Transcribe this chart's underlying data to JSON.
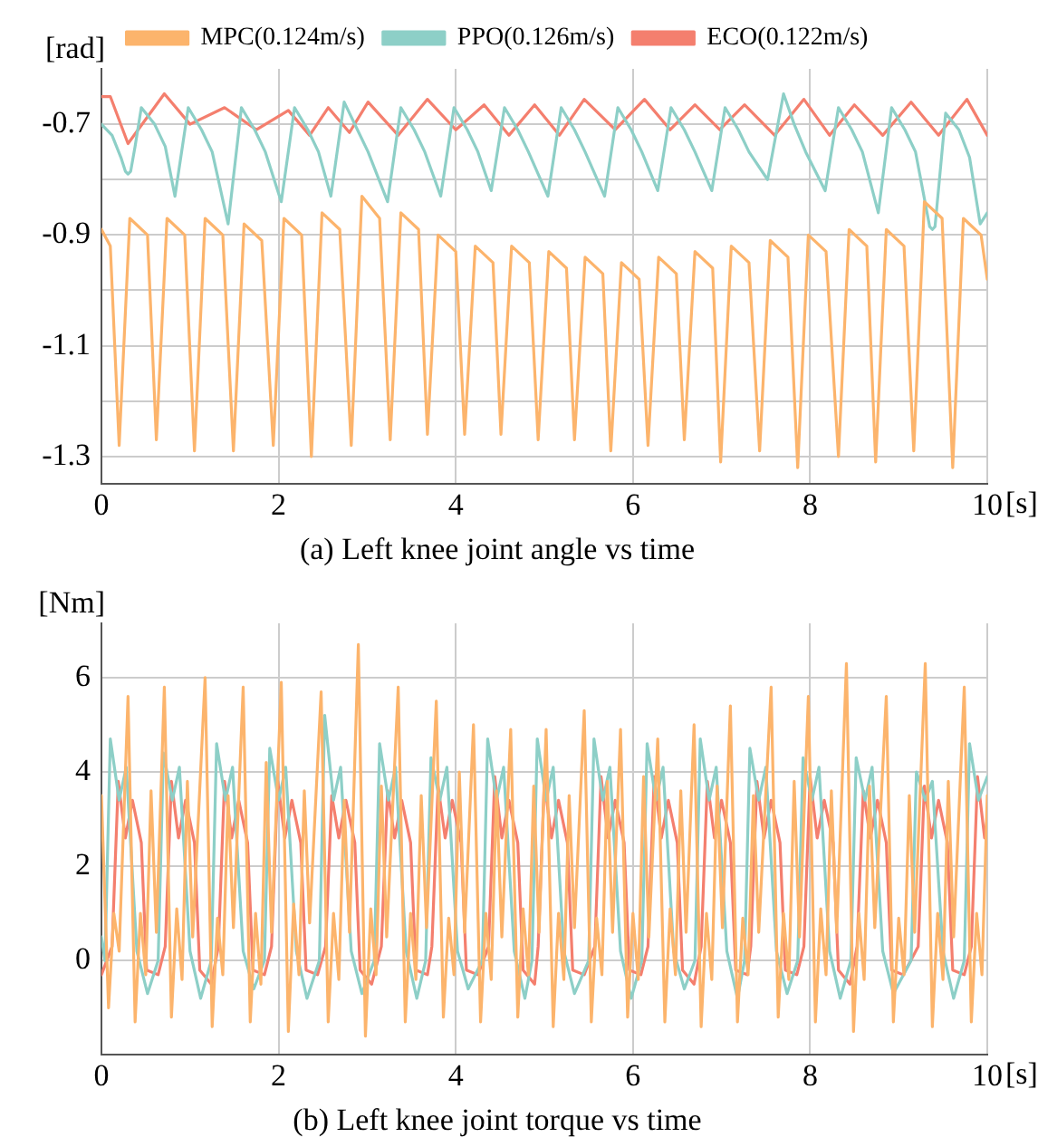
{
  "chart_data": [
    {
      "type": "line",
      "title": "(a) Left knee joint angle vs time",
      "xlabel": "[s]",
      "ylabel": "[rad]",
      "xlim": [
        0,
        10
      ],
      "xticks": [
        0,
        2,
        4,
        6,
        8,
        10
      ],
      "ylim": [
        -1.35,
        -0.6
      ],
      "yticks": [
        -1.3,
        {
          "value": -1.2,
          "label": null
        },
        -1.1,
        {
          "value": -1.0,
          "label": null
        },
        -0.9,
        {
          "value": -0.8,
          "label": null
        },
        -0.7
      ],
      "grid": true,
      "legend": "top",
      "marker": "none",
      "line_style": "solid",
      "series": [
        {
          "name": "MPC(0.124m/s)",
          "color": "#fcb46c",
          "x": [
            0,
            0.1,
            0.2,
            0.32,
            0.52,
            0.62,
            0.74,
            0.94,
            1.05,
            1.17,
            1.37,
            1.49,
            1.61,
            1.81,
            1.94,
            2.06,
            2.26,
            2.37,
            2.49,
            2.69,
            2.82,
            2.94,
            3.14,
            3.26,
            3.38,
            3.58,
            3.68,
            3.8,
            4.0,
            4.1,
            4.22,
            4.42,
            4.51,
            4.63,
            4.83,
            4.93,
            5.05,
            5.25,
            5.34,
            5.46,
            5.66,
            5.75,
            5.87,
            6.07,
            6.17,
            6.29,
            6.49,
            6.58,
            6.7,
            6.9,
            6.99,
            7.11,
            7.31,
            7.43,
            7.55,
            7.75,
            7.86,
            7.98,
            8.18,
            8.32,
            8.44,
            8.64,
            8.74,
            8.86,
            9.06,
            9.17,
            9.29,
            9.49,
            9.61,
            9.73,
            9.93,
            10
          ],
          "values": [
            -0.89,
            -0.92,
            -1.28,
            -0.87,
            -0.9,
            -1.27,
            -0.87,
            -0.9,
            -1.29,
            -0.87,
            -0.9,
            -1.29,
            -0.88,
            -0.91,
            -1.28,
            -0.87,
            -0.9,
            -1.3,
            -0.86,
            -0.89,
            -1.28,
            -0.83,
            -0.87,
            -1.27,
            -0.86,
            -0.89,
            -1.26,
            -0.9,
            -0.93,
            -1.26,
            -0.92,
            -0.95,
            -1.26,
            -0.92,
            -0.95,
            -1.27,
            -0.93,
            -0.96,
            -1.27,
            -0.94,
            -0.97,
            -1.29,
            -0.95,
            -0.98,
            -1.28,
            -0.94,
            -0.97,
            -1.27,
            -0.93,
            -0.96,
            -1.31,
            -0.92,
            -0.95,
            -1.29,
            -0.91,
            -0.94,
            -1.32,
            -0.9,
            -0.93,
            -1.3,
            -0.89,
            -0.92,
            -1.31,
            -0.89,
            -0.92,
            -1.29,
            -0.84,
            -0.87,
            -1.32,
            -0.87,
            -0.9,
            -0.98
          ]
        },
        {
          "name": "PPO(0.126m/s)",
          "color": "#8dcfc7",
          "x": [
            0,
            0.12,
            0.22,
            0.27,
            0.3,
            0.33,
            0.38,
            0.45,
            0.6,
            0.72,
            0.83,
            0.98,
            1.13,
            1.25,
            1.43,
            1.58,
            1.73,
            1.85,
            2.03,
            2.18,
            2.33,
            2.45,
            2.59,
            2.74,
            2.89,
            3.01,
            3.23,
            3.38,
            3.53,
            3.65,
            3.83,
            3.98,
            4.13,
            4.25,
            4.4,
            4.55,
            4.7,
            4.82,
            5.04,
            5.19,
            5.34,
            5.46,
            5.68,
            5.83,
            5.98,
            6.1,
            6.28,
            6.43,
            6.58,
            6.7,
            6.89,
            7.04,
            7.19,
            7.31,
            7.52,
            7.7,
            7.82,
            7.95,
            8.17,
            8.32,
            8.47,
            8.59,
            8.77,
            8.92,
            9.07,
            9.19,
            9.35,
            9.38,
            9.41,
            9.53,
            9.68,
            9.8,
            9.92,
            10
          ],
          "values": [
            -0.7,
            -0.72,
            -0.76,
            -0.785,
            -0.79,
            -0.785,
            -0.74,
            -0.67,
            -0.7,
            -0.74,
            -0.83,
            -0.67,
            -0.71,
            -0.75,
            -0.88,
            -0.67,
            -0.71,
            -0.75,
            -0.84,
            -0.67,
            -0.71,
            -0.75,
            -0.83,
            -0.66,
            -0.71,
            -0.75,
            -0.84,
            -0.67,
            -0.71,
            -0.75,
            -0.83,
            -0.67,
            -0.71,
            -0.75,
            -0.82,
            -0.67,
            -0.71,
            -0.75,
            -0.83,
            -0.67,
            -0.71,
            -0.75,
            -0.83,
            -0.67,
            -0.71,
            -0.75,
            -0.82,
            -0.67,
            -0.71,
            -0.75,
            -0.82,
            -0.67,
            -0.71,
            -0.75,
            -0.8,
            -0.645,
            -0.7,
            -0.75,
            -0.82,
            -0.67,
            -0.71,
            -0.75,
            -0.86,
            -0.67,
            -0.71,
            -0.75,
            -0.885,
            -0.89,
            -0.885,
            -0.68,
            -0.71,
            -0.76,
            -0.88,
            -0.86
          ]
        },
        {
          "name": "ECO(0.122m/s)",
          "color": "#f47f6e",
          "x": [
            0,
            0.1,
            0.3,
            0.71,
            1.0,
            1.39,
            1.75,
            2.11,
            2.35,
            2.56,
            2.8,
            3.01,
            3.35,
            3.68,
            4.0,
            4.32,
            4.6,
            4.89,
            5.17,
            5.45,
            5.8,
            6.13,
            6.42,
            6.7,
            6.98,
            7.26,
            7.6,
            7.93,
            8.22,
            8.5,
            8.82,
            9.14,
            9.45,
            9.77,
            10
          ],
          "values": [
            -0.65,
            -0.65,
            -0.735,
            -0.645,
            -0.7,
            -0.67,
            -0.71,
            -0.675,
            -0.72,
            -0.67,
            -0.715,
            -0.66,
            -0.72,
            -0.655,
            -0.71,
            -0.665,
            -0.72,
            -0.665,
            -0.72,
            -0.655,
            -0.71,
            -0.655,
            -0.71,
            -0.665,
            -0.71,
            -0.665,
            -0.72,
            -0.655,
            -0.72,
            -0.665,
            -0.72,
            -0.66,
            -0.72,
            -0.655,
            -0.72
          ]
        }
      ]
    },
    {
      "type": "line",
      "title": "(b) Left knee joint torque vs time",
      "xlabel": "[s]",
      "ylabel": "[Nm]",
      "xlim": [
        0,
        10
      ],
      "xticks": [
        0,
        2,
        4,
        6,
        8,
        10
      ],
      "ylim": [
        -2,
        7.15
      ],
      "yticks": [
        0,
        2,
        4,
        6
      ],
      "grid": true,
      "marker": "none",
      "line_style": "solid",
      "series": [
        {
          "color": "#fcb46c",
          "x": [
            0,
            0.08,
            0.14,
            0.2,
            0.3,
            0.38,
            0.44,
            0.5,
            0.56,
            0.62,
            0.71,
            0.79,
            0.85,
            0.91,
            0.97,
            1.03,
            1.17,
            1.25,
            1.31,
            1.37,
            1.43,
            1.49,
            1.6,
            1.68,
            1.74,
            1.8,
            1.86,
            1.92,
            2.03,
            2.11,
            2.17,
            2.23,
            2.29,
            2.35,
            2.48,
            2.56,
            2.62,
            2.68,
            2.74,
            2.8,
            2.9,
            2.98,
            3.04,
            3.1,
            3.16,
            3.22,
            3.35,
            3.43,
            3.49,
            3.55,
            3.61,
            3.67,
            3.78,
            3.86,
            3.92,
            3.98,
            4.04,
            4.1,
            4.2,
            4.28,
            4.34,
            4.4,
            4.46,
            4.52,
            4.62,
            4.7,
            4.76,
            4.82,
            4.88,
            4.94,
            5.02,
            5.1,
            5.16,
            5.22,
            5.28,
            5.34,
            5.45,
            5.53,
            5.59,
            5.65,
            5.71,
            5.77,
            5.86,
            5.94,
            6.0,
            6.06,
            6.12,
            6.18,
            6.28,
            6.36,
            6.42,
            6.48,
            6.54,
            6.6,
            6.69,
            6.77,
            6.83,
            6.89,
            6.95,
            7.01,
            7.1,
            7.18,
            7.24,
            7.3,
            7.36,
            7.42,
            7.56,
            7.64,
            7.7,
            7.76,
            7.82,
            7.88,
            7.98,
            8.06,
            8.12,
            8.18,
            8.24,
            8.3,
            8.41,
            8.49,
            8.55,
            8.61,
            8.67,
            8.73,
            8.86,
            8.94,
            9.0,
            9.06,
            9.12,
            9.18,
            9.3,
            9.38,
            9.44,
            9.5,
            9.56,
            9.62,
            9.74,
            9.82,
            9.88,
            9.94,
            10
          ],
          "values": [
            3.5,
            -1.0,
            1.0,
            0.2,
            5.6,
            -1.3,
            1.0,
            -0.3,
            3.6,
            0.6,
            5.8,
            -1.2,
            1.1,
            -0.4,
            3.8,
            0.5,
            6.0,
            -1.4,
            0.9,
            -0.3,
            3.5,
            0.7,
            5.8,
            -1.3,
            1.0,
            -0.5,
            4.2,
            0.6,
            5.9,
            -1.5,
            1.2,
            -0.3,
            3.6,
            0.8,
            5.7,
            -1.3,
            1.0,
            -0.4,
            3.4,
            0.6,
            6.7,
            -1.6,
            1.1,
            -0.3,
            3.7,
            0.5,
            5.8,
            -1.3,
            1.0,
            -0.4,
            3.5,
            0.7,
            5.5,
            -1.2,
            0.9,
            -0.3,
            4.0,
            0.6,
            5.0,
            -1.3,
            1.0,
            -0.4,
            3.6,
            0.5,
            4.9,
            -1.2,
            1.1,
            -0.3,
            3.7,
            0.6,
            4.9,
            -1.4,
            1.0,
            -0.4,
            3.5,
            0.7,
            5.3,
            -1.3,
            0.9,
            -0.3,
            3.8,
            0.6,
            4.9,
            -1.2,
            1.0,
            -0.4,
            3.9,
            0.5,
            4.7,
            -1.3,
            1.1,
            -0.3,
            3.6,
            0.6,
            5.0,
            -1.4,
            1.0,
            -0.4,
            3.7,
            0.7,
            5.4,
            -1.3,
            0.9,
            -0.3,
            3.5,
            0.6,
            5.8,
            -1.2,
            1.0,
            -0.4,
            3.8,
            0.5,
            5.6,
            -1.3,
            1.1,
            -0.3,
            3.6,
            0.6,
            6.3,
            -1.5,
            1.0,
            -0.4,
            3.7,
            0.7,
            5.6,
            -1.3,
            0.9,
            -0.3,
            3.5,
            0.6,
            6.3,
            -1.4,
            1.0,
            -0.4,
            3.8,
            0.5,
            5.8,
            -1.3,
            1.0,
            -0.3,
            3.5
          ]
        },
        {
          "color": "#8dcfc7",
          "x": [
            0,
            0.04,
            0.1,
            0.2,
            0.28,
            0.4,
            0.52,
            0.64,
            0.7,
            0.8,
            0.88,
            1.0,
            1.12,
            1.24,
            1.3,
            1.4,
            1.48,
            1.6,
            1.72,
            1.84,
            1.9,
            2.0,
            2.08,
            2.2,
            2.32,
            2.46,
            2.52,
            2.62,
            2.7,
            2.82,
            2.94,
            3.08,
            3.14,
            3.24,
            3.32,
            3.44,
            3.56,
            3.66,
            3.72,
            3.82,
            3.9,
            4.02,
            4.14,
            4.3,
            4.36,
            4.46,
            4.54,
            4.66,
            4.78,
            4.86,
            4.92,
            5.02,
            5.1,
            5.22,
            5.34,
            5.5,
            5.56,
            5.66,
            5.74,
            5.86,
            5.98,
            6.1,
            6.16,
            6.26,
            6.34,
            6.46,
            6.58,
            6.7,
            6.76,
            6.86,
            6.94,
            7.06,
            7.18,
            7.26,
            7.32,
            7.42,
            7.5,
            7.62,
            7.74,
            7.86,
            7.92,
            8.02,
            8.1,
            8.22,
            8.34,
            8.46,
            8.52,
            8.62,
            8.7,
            8.82,
            8.94,
            9.14,
            9.2,
            9.3,
            9.38,
            9.5,
            9.62,
            9.74,
            9.8,
            9.9,
            10
          ],
          "values": [
            0.5,
            0.0,
            4.7,
            3.4,
            4.1,
            0.2,
            -0.7,
            0.0,
            4.4,
            3.4,
            4.1,
            0.2,
            -0.8,
            0.0,
            4.6,
            3.4,
            4.1,
            0.2,
            -0.6,
            0.0,
            4.5,
            3.4,
            4.1,
            0.2,
            -0.8,
            0.0,
            5.2,
            3.4,
            4.1,
            0.2,
            -0.7,
            0.0,
            4.6,
            3.4,
            4.1,
            0.2,
            -0.8,
            0.0,
            4.3,
            3.4,
            4.1,
            0.2,
            -0.6,
            0.0,
            4.7,
            3.4,
            4.1,
            0.2,
            -0.8,
            0.0,
            4.7,
            3.4,
            4.1,
            0.2,
            -0.7,
            0.0,
            4.7,
            3.4,
            4.1,
            0.2,
            -0.8,
            0.0,
            4.6,
            3.4,
            4.1,
            0.2,
            -0.6,
            0.0,
            4.7,
            3.4,
            4.1,
            0.2,
            -0.8,
            0.0,
            4.5,
            3.4,
            4.1,
            0.2,
            -0.7,
            0.0,
            4.3,
            3.4,
            4.1,
            0.2,
            -0.8,
            0.0,
            4.3,
            3.4,
            4.1,
            0.2,
            -0.7,
            0.0,
            4.0,
            3.4,
            3.8,
            0.2,
            -0.8,
            0.0,
            4.6,
            3.4,
            3.9
          ]
        },
        {
          "color": "#f47f6e",
          "x": [
            0,
            0.12,
            0.19,
            0.27,
            0.35,
            0.45,
            0.51,
            0.64,
            0.72,
            0.79,
            0.87,
            0.95,
            1.05,
            1.11,
            1.24,
            1.32,
            1.39,
            1.47,
            1.55,
            1.65,
            1.71,
            1.84,
            1.92,
            1.99,
            2.07,
            2.15,
            2.25,
            2.31,
            2.44,
            2.53,
            2.6,
            2.68,
            2.76,
            2.86,
            2.92,
            3.05,
            3.16,
            3.23,
            3.31,
            3.39,
            3.49,
            3.55,
            3.68,
            3.73,
            3.8,
            3.88,
            3.96,
            4.06,
            4.12,
            4.25,
            4.37,
            4.44,
            4.52,
            4.6,
            4.7,
            4.76,
            4.89,
            4.93,
            5.0,
            5.08,
            5.16,
            5.26,
            5.32,
            5.45,
            5.57,
            5.64,
            5.72,
            5.8,
            5.9,
            5.96,
            6.09,
            6.17,
            6.24,
            6.32,
            6.4,
            6.5,
            6.56,
            6.69,
            6.77,
            6.84,
            6.92,
            7.0,
            7.1,
            7.16,
            7.29,
            7.33,
            7.4,
            7.48,
            7.56,
            7.66,
            7.72,
            7.85,
            7.93,
            8.0,
            8.08,
            8.16,
            8.26,
            8.32,
            8.45,
            8.53,
            8.6,
            8.68,
            8.76,
            8.86,
            8.92,
            9.05,
            9.22,
            9.29,
            9.37,
            9.45,
            9.55,
            9.61,
            9.74,
            9.82,
            9.89,
            9.97,
            10
          ],
          "values": [
            -0.3,
            0.3,
            3.8,
            2.6,
            3.4,
            2.5,
            -0.2,
            -0.3,
            0.3,
            3.8,
            2.6,
            3.4,
            2.5,
            -0.2,
            -0.5,
            0.3,
            3.8,
            2.6,
            3.4,
            2.5,
            -0.2,
            -0.3,
            0.3,
            3.8,
            2.6,
            3.4,
            2.5,
            -0.2,
            -0.3,
            0.3,
            3.5,
            2.6,
            3.4,
            2.5,
            -0.2,
            -0.5,
            0.3,
            3.6,
            2.6,
            3.4,
            2.5,
            -0.2,
            -0.3,
            0.3,
            3.7,
            2.6,
            3.4,
            2.5,
            -0.2,
            -0.3,
            0.3,
            3.9,
            2.6,
            3.4,
            2.5,
            -0.2,
            -0.5,
            0.3,
            3.8,
            2.6,
            3.4,
            2.5,
            -0.2,
            -0.3,
            0.3,
            3.9,
            2.6,
            3.4,
            2.5,
            -0.2,
            -0.3,
            0.3,
            3.9,
            2.6,
            3.4,
            2.5,
            -0.2,
            -0.5,
            0.3,
            3.8,
            2.6,
            3.4,
            2.5,
            -0.2,
            -0.3,
            0.3,
            3.8,
            2.6,
            3.4,
            2.5,
            -0.2,
            -0.3,
            0.3,
            3.9,
            2.6,
            3.4,
            2.5,
            -0.2,
            -0.5,
            0.3,
            3.6,
            2.6,
            3.4,
            2.5,
            -0.2,
            -0.3,
            0.3,
            3.7,
            2.6,
            3.4,
            2.5,
            -0.2,
            -0.3,
            0.3,
            3.9,
            2.6,
            3.0
          ]
        }
      ]
    }
  ]
}
